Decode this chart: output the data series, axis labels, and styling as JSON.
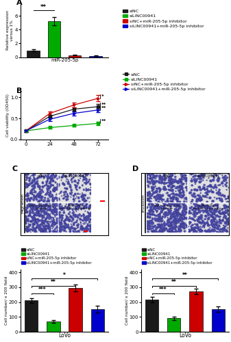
{
  "groups": [
    "siNC",
    "siLINC00941",
    "siNC+miR-205-5p inhibitor",
    "siLINC00941+miR-205-5p inhibitor"
  ],
  "group_colors": [
    "#1a1a1a",
    "#00aa00",
    "#cc0000",
    "#0000cc"
  ],
  "panel_A": {
    "ylabel": "Relative expression\nversus 1%",
    "xlabel": "miR-205-5p",
    "bars": [
      1.0,
      5.2,
      0.3,
      0.2
    ],
    "errors": [
      0.15,
      0.6,
      0.05,
      0.05
    ],
    "bar_colors": [
      "#1a1a1a",
      "#00aa00",
      "#cc0000",
      "#0000cc"
    ],
    "ylim": [
      0,
      7.5
    ],
    "yticks": [
      0,
      2,
      4,
      6
    ]
  },
  "panel_B": {
    "ylabel": "Cell viability (OD450)",
    "x": [
      0,
      24,
      48,
      72
    ],
    "lines": [
      {
        "values": [
          0.2,
          0.55,
          0.72,
          0.78
        ],
        "errors": [
          0.02,
          0.04,
          0.05,
          0.06
        ],
        "color": "#1a1a1a"
      },
      {
        "values": [
          0.2,
          0.28,
          0.33,
          0.38
        ],
        "errors": [
          0.02,
          0.03,
          0.03,
          0.04
        ],
        "color": "#00aa00"
      },
      {
        "values": [
          0.2,
          0.62,
          0.82,
          0.98
        ],
        "errors": [
          0.02,
          0.05,
          0.06,
          0.07
        ],
        "color": "#cc0000"
      },
      {
        "values": [
          0.2,
          0.48,
          0.62,
          0.7
        ],
        "errors": [
          0.02,
          0.04,
          0.05,
          0.05
        ],
        "color": "#0000cc"
      }
    ],
    "ylim": [
      0.0,
      1.15
    ],
    "yticks": [
      0.0,
      0.5,
      1.0
    ],
    "xticks": [
      0,
      24,
      48,
      72
    ]
  },
  "panel_C_bars": {
    "ylabel": "Cell number/ x 200 field",
    "xlabel": "LoVo",
    "bars": [
      210,
      68,
      295,
      152
    ],
    "errors": [
      14,
      10,
      22,
      22
    ],
    "bar_colors": [
      "#1a1a1a",
      "#00aa00",
      "#cc0000",
      "#0000cc"
    ],
    "ylim": [
      0,
      420
    ],
    "yticks": [
      0,
      100,
      200,
      300,
      400
    ]
  },
  "panel_D_bars": {
    "ylabel": "Cell number/ x 200 field",
    "xlabel": "LoVo",
    "bars": [
      215,
      90,
      272,
      152
    ],
    "errors": [
      18,
      12,
      20,
      18
    ],
    "bar_colors": [
      "#1a1a1a",
      "#00aa00",
      "#cc0000",
      "#0000cc"
    ],
    "ylim": [
      0,
      420
    ],
    "yticks": [
      0,
      100,
      200,
      300,
      400
    ]
  },
  "legend_labels": [
    "siNC",
    "siLINC00941",
    "siNC+miR-205-5p inhibitor",
    "siLINC00941+miR-205-5p inhibitor"
  ]
}
